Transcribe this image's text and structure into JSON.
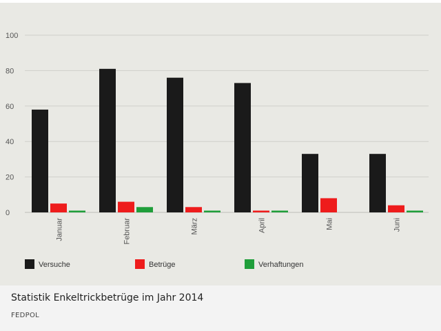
{
  "caption": {
    "title": "Statistik Enkeltrickbetrüge im Jahr 2014",
    "source": "FEDPOL"
  },
  "chart_data": {
    "type": "bar",
    "title": "",
    "xlabel": "",
    "ylabel": "",
    "ylim": [
      0,
      100
    ],
    "yticks": [
      0,
      20,
      40,
      60,
      80,
      100
    ],
    "grid": true,
    "legend_position": "bottom",
    "categories": [
      "Januar",
      "Februar",
      "März",
      "April",
      "Mai",
      "Juni"
    ],
    "series": [
      {
        "name": "Versuche",
        "color": "#1a1a1a",
        "values": [
          58,
          81,
          76,
          73,
          33,
          33
        ]
      },
      {
        "name": "Betrüge",
        "color": "#ee1c1c",
        "values": [
          5,
          6,
          3,
          1,
          8,
          4
        ]
      },
      {
        "name": "Verhaftungen",
        "color": "#1f9e3a",
        "values": [
          1,
          3,
          1,
          1,
          0,
          1
        ]
      }
    ]
  }
}
